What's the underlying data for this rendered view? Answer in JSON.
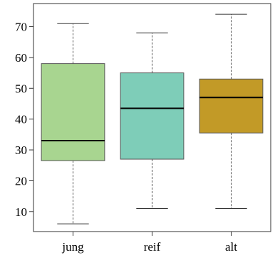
{
  "chart_data": {
    "type": "boxplot",
    "title": "",
    "xlabel": "",
    "ylabel": "",
    "categories": [
      "jung",
      "reif",
      "alt"
    ],
    "ylim": [
      3.5,
      77.5
    ],
    "yticks": [
      10,
      20,
      30,
      40,
      50,
      60,
      70
    ],
    "grid": false,
    "boxes": [
      {
        "name": "jung",
        "min": 6,
        "q1": 26.5,
        "median": 33,
        "q3": 58,
        "max": 71,
        "color": "#a8d590"
      },
      {
        "name": "reif",
        "min": 11,
        "q1": 27,
        "median": 43.5,
        "q3": 55,
        "max": 68,
        "color": "#7ecdb8"
      },
      {
        "name": "alt",
        "min": 11,
        "q1": 35.5,
        "median": 47,
        "q3": 53,
        "max": 74,
        "color": "#c29a27"
      }
    ]
  }
}
